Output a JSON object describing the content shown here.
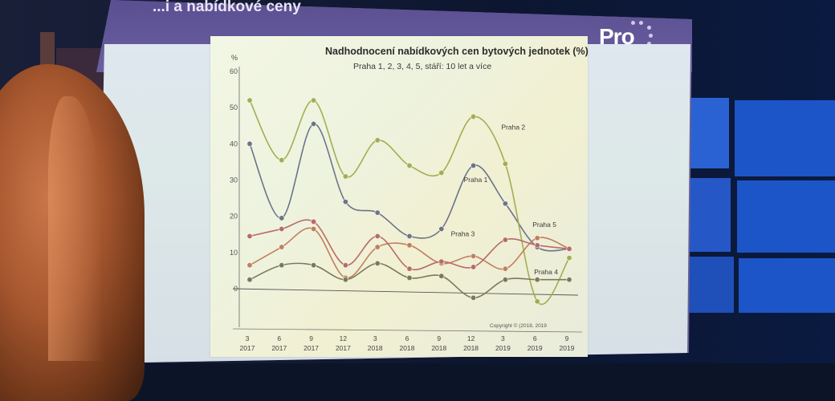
{
  "slide": {
    "title": "...i a nabídkové ceny",
    "logo_text": "Pro"
  },
  "chart": {
    "title": "Nadhodnocení nabídkových cen bytových jednotek  (%)",
    "subtitle": "Praha  1, 2, 3, 4, 5, stáří: 10 let a více",
    "y_unit": "%",
    "copyright": "Copyright © (2018, 2019"
  },
  "chart_data": {
    "type": "line",
    "title": "Nadhodnocení nabídkových cen bytových jednotek  (%)",
    "subtitle": "Praha  1, 2, 3, 4, 5, stáří: 10 let a více",
    "ylabel": "%",
    "ylim": [
      -7,
      62
    ],
    "yticks": [
      0,
      10,
      20,
      30,
      40,
      50,
      60
    ],
    "categories": [
      [
        "3",
        "2017"
      ],
      [
        "6",
        "2017"
      ],
      [
        "9",
        "2017"
      ],
      [
        "12",
        "2017"
      ],
      [
        "3",
        "2018"
      ],
      [
        "6",
        "2018"
      ],
      [
        "9",
        "2018"
      ],
      [
        "12",
        "2018"
      ],
      [
        "3",
        "2019"
      ],
      [
        "6",
        "2019"
      ],
      [
        "9",
        "2019"
      ]
    ],
    "series": [
      {
        "name": "Praha 1",
        "color": "#6b7488",
        "values": [
          40,
          19.5,
          45.5,
          24,
          21,
          14.5,
          16.5,
          34,
          23.5,
          11.5,
          11
        ]
      },
      {
        "name": "Praha 2",
        "color": "#a3ad52",
        "values": [
          52,
          35.5,
          52,
          31,
          41,
          34,
          32,
          47.5,
          34.5,
          -3.5,
          8.5
        ]
      },
      {
        "name": "Praha 3",
        "color": "#c07f5e",
        "values": [
          6.5,
          11.5,
          16.5,
          3,
          11.5,
          12,
          7,
          9,
          5.5,
          14,
          11
        ]
      },
      {
        "name": "Praha 4",
        "color": "#7a7a5a",
        "values": [
          2.5,
          6.5,
          6.5,
          2.5,
          7,
          3,
          3.5,
          -2.5,
          2.5,
          2.5,
          2.5
        ]
      },
      {
        "name": "Praha 5",
        "color": "#b86a6a",
        "values": [
          14.5,
          16.5,
          18.5,
          6.5,
          14.5,
          5.5,
          7.5,
          6,
          13.5,
          12,
          11
        ]
      }
    ]
  }
}
